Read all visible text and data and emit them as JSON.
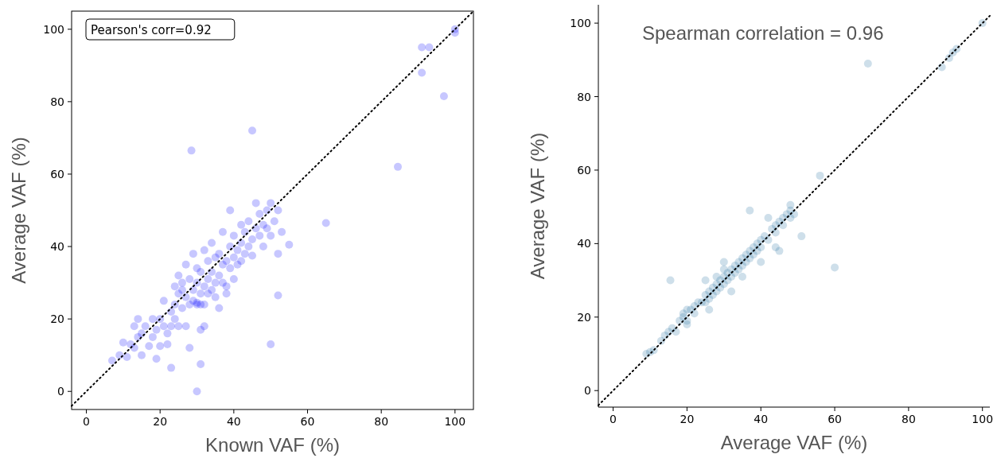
{
  "chart_data": [
    {
      "type": "scatter",
      "xlabel": "Known VAF (%)",
      "ylabel": "Average VAF (%)",
      "xlim": [
        -4,
        105
      ],
      "ylim": [
        -5,
        105
      ],
      "xticks": [
        0,
        20,
        40,
        60,
        80,
        100
      ],
      "yticks": [
        0,
        20,
        40,
        60,
        80,
        100
      ],
      "grid": false,
      "annotations": [
        "Pearson's corr=0.92"
      ],
      "series": [
        {
          "marker": "circle",
          "color": "#0000ff",
          "x": [
            7,
            9,
            10,
            11,
            12,
            13,
            13,
            14,
            14,
            15,
            15,
            16,
            17,
            18,
            18,
            19,
            19,
            20,
            20,
            21,
            21,
            22,
            22,
            23,
            23,
            24,
            24,
            25,
            25,
            25,
            26,
            26,
            27,
            27,
            27,
            28,
            28,
            28,
            29,
            29,
            29,
            30,
            30,
            30,
            31,
            31,
            31,
            32,
            32,
            32,
            33,
            33,
            33,
            34,
            34,
            34,
            35,
            35,
            35,
            36,
            36,
            36,
            37,
            37,
            37,
            38,
            38,
            39,
            39,
            39,
            40,
            40,
            40,
            41,
            41,
            42,
            42,
            43,
            43,
            44,
            44,
            45,
            45,
            46,
            46,
            47,
            47,
            48,
            48,
            49,
            49,
            50,
            50,
            51,
            52,
            53,
            55,
            52,
            26,
            24,
            38,
            42,
            28.5,
            45,
            65,
            84.5,
            91,
            93,
            91,
            97,
            100,
            100,
            50,
            52,
            30,
            31,
            23,
            32,
            31,
            30
          ],
          "values": [
            8.5,
            10,
            13.5,
            9.5,
            13,
            18,
            12,
            15,
            20,
            10,
            16,
            18,
            12.5,
            20,
            15,
            9,
            17,
            20,
            12.5,
            18,
            25,
            16,
            13,
            22,
            18,
            29,
            20,
            27,
            18,
            32,
            23,
            30,
            26,
            35,
            18,
            24,
            31,
            12,
            28,
            38,
            25,
            30,
            24,
            34,
            27,
            33,
            17,
            29,
            24,
            39,
            31,
            36,
            27,
            28,
            41,
            33,
            30,
            37,
            26,
            32,
            38,
            23,
            35,
            44,
            30,
            36,
            27,
            40,
            34,
            50,
            37,
            43,
            31,
            39,
            35,
            41,
            46,
            38,
            44,
            47,
            40,
            42,
            37.5,
            45,
            52,
            43,
            49,
            46,
            40,
            50,
            45,
            52,
            43,
            47,
            50,
            44,
            40.5,
            38,
            28,
            24,
            29,
            36,
            66.5,
            72,
            46.5,
            62,
            95,
            95,
            88,
            81.5,
            100,
            99,
            13,
            26.5,
            0,
            7.5,
            6.5,
            18,
            24,
            24.5
          ]
        },
        {
          "type": "line",
          "color": "#000000",
          "line_style": "dotted",
          "x": [
            -4,
            105
          ],
          "values": [
            -4,
            105
          ]
        }
      ]
    },
    {
      "type": "scatter",
      "xlabel": "Average VAF (%)",
      "ylabel": "Average VAF (%)",
      "xlim": [
        -4,
        102
      ],
      "ylim": [
        -4.5,
        105
      ],
      "xticks": [
        0,
        20,
        40,
        60,
        80,
        100
      ],
      "yticks": [
        0,
        20,
        40,
        60,
        80,
        100
      ],
      "grid": false,
      "annotations": [
        "Spearman correlation = 0.96"
      ],
      "series": [
        {
          "marker": "circle",
          "color": "#1f6f9f",
          "x": [
            9,
            10,
            11,
            13,
            14,
            15,
            16,
            17,
            18,
            19,
            19,
            20,
            20,
            21,
            22,
            22,
            23,
            24,
            25,
            25,
            26,
            26,
            27,
            27,
            28,
            28,
            28,
            29,
            29,
            30,
            30,
            30,
            31,
            31,
            32,
            32,
            33,
            33,
            34,
            34,
            35,
            35,
            36,
            36,
            37,
            37,
            38,
            38,
            39,
            39,
            40,
            40,
            41,
            42,
            43,
            44,
            44,
            45,
            46,
            46,
            47,
            48,
            48,
            49,
            25,
            32,
            40,
            35,
            44,
            45,
            30,
            26,
            20,
            15.5,
            37,
            42,
            51,
            56,
            60,
            69,
            89,
            91,
            92,
            93,
            100,
            48
          ],
          "values": [
            10,
            10.5,
            11,
            13.5,
            15,
            16,
            17,
            16,
            19,
            20,
            21,
            19,
            22,
            22,
            23,
            21,
            24,
            24,
            26,
            24,
            27,
            25,
            28,
            26,
            29,
            27,
            31,
            30,
            28,
            31,
            29,
            33,
            30,
            32,
            33,
            31,
            32,
            34,
            35,
            33,
            36,
            34,
            37,
            35,
            38,
            36,
            39,
            37,
            40,
            38,
            41,
            39,
            42,
            41,
            44,
            45,
            43,
            46,
            47,
            45,
            48,
            49,
            47,
            48,
            30,
            27,
            35,
            31,
            39,
            38,
            35,
            22,
            18,
            30,
            49,
            47,
            42,
            58.5,
            33.5,
            89,
            88,
            90.5,
            92,
            93,
            100,
            50.5
          ]
        },
        {
          "type": "line",
          "color": "#000000",
          "line_style": "dotted",
          "x": [
            -4,
            102
          ],
          "values": [
            -4,
            102
          ]
        }
      ]
    }
  ]
}
